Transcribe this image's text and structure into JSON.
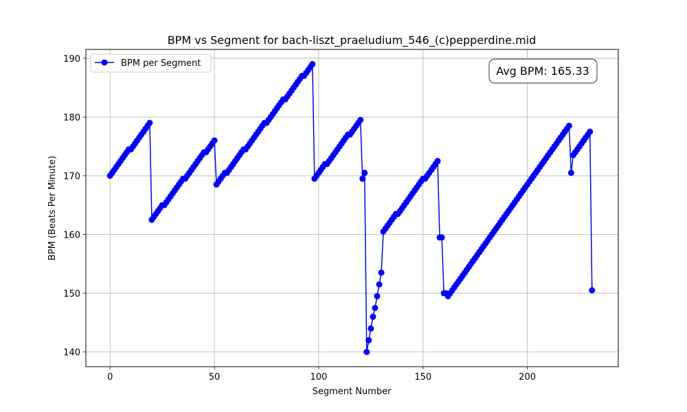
{
  "chart_data": {
    "type": "line",
    "title": "BPM vs Segment for bach-liszt_praeludium_546_(c)pepperdine.mid",
    "xlabel": "Segment Number",
    "ylabel": "BPM (Beats Per Minute)",
    "xlim": [
      -11.6,
      243.6
    ],
    "ylim": [
      137.5,
      191.5
    ],
    "xticks": [
      0,
      50,
      100,
      150,
      200
    ],
    "yticks": [
      140,
      150,
      160,
      170,
      180,
      190
    ],
    "grid": true,
    "legend_position": "top-left",
    "annotation": "Avg BPM: 165.33",
    "colors": {
      "series": "#0000ff"
    },
    "series": [
      {
        "name": "BPM per Segment",
        "segments": [
          {
            "x0": 0,
            "x1": 19,
            "y0": 170.0,
            "y1": 179.0
          },
          {
            "x0": 20,
            "x1": 50,
            "y0": 162.5,
            "y1": 176.0
          },
          {
            "x0": 51,
            "x1": 97,
            "y0": 168.5,
            "y1": 189.0
          },
          {
            "x0": 98,
            "x1": 120,
            "y0": 169.5,
            "y1": 179.5
          },
          {
            "x0": 121,
            "x1": 122,
            "y0": 169.5,
            "y1": 170.5
          },
          {
            "x0": 123,
            "x1": 130,
            "y0": 140.0,
            "y1": 153.5
          },
          {
            "x0": 131,
            "x1": 157,
            "y0": 160.5,
            "y1": 172.5
          },
          {
            "x0": 158,
            "x1": 159,
            "y0": 159.5,
            "y1": 159.5
          },
          {
            "x0": 160,
            "x1": 162,
            "y0": 150.0,
            "y1": 149.5
          },
          {
            "x0": 163,
            "x1": 220,
            "y0": 150.0,
            "y1": 178.5
          },
          {
            "x0": 221,
            "x1": 221,
            "y0": 170.5,
            "y1": 170.5
          },
          {
            "x0": 222,
            "x1": 230,
            "y0": 173.5,
            "y1": 177.5
          },
          {
            "x0": 231,
            "x1": 231,
            "y0": 150.5,
            "y1": 150.5
          }
        ]
      }
    ]
  }
}
